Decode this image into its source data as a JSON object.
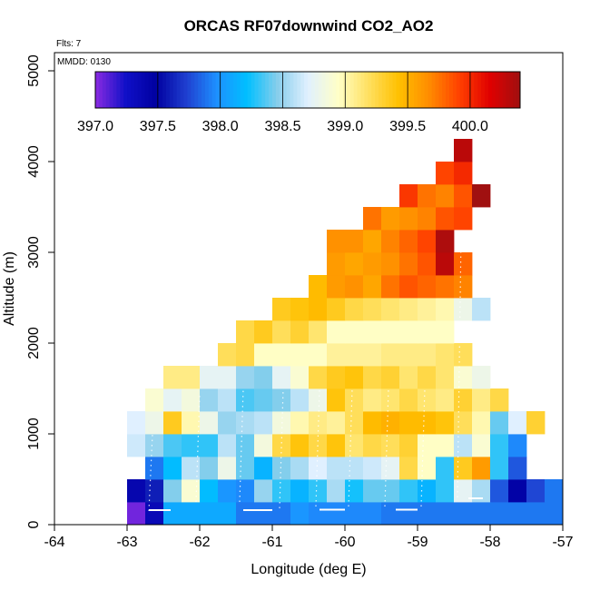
{
  "chart_data": {
    "type": "heatmap",
    "title": "ORCAS RF07downwind CO2_AO2",
    "annotations": [
      "Flts: 7",
      "MMDD: 0130"
    ],
    "xlabel": "Longitude (deg E)",
    "ylabel": "Altitude (m)",
    "xlim": [
      -64,
      -57
    ],
    "ylim": [
      0,
      5200
    ],
    "x_ticks": [
      -64,
      -63,
      -62,
      -61,
      -60,
      -59,
      -58,
      -57
    ],
    "y_ticks": [
      0,
      1000,
      2000,
      3000,
      4000,
      5000
    ],
    "x_tick_labels": [
      "-64",
      "-63",
      "-62",
      "-61",
      "-60",
      "-59",
      "-58",
      "-57"
    ],
    "y_tick_labels": [
      "0",
      "1000",
      "2000",
      "3000",
      "4000",
      "5000"
    ],
    "grid": false,
    "colorbar": {
      "min": 397.0,
      "max": 400.4,
      "ticks": [
        397.0,
        397.5,
        398.0,
        398.5,
        399.0,
        399.5,
        400.0
      ],
      "tick_labels": [
        "397.0",
        "397.5",
        "398.0",
        "398.5",
        "399.0",
        "399.5",
        "400.0"
      ],
      "position": "top inset",
      "colors": [
        "#8a2be2",
        "#1010c8",
        "#0000a0",
        "#1f3fd0",
        "#1e90ff",
        "#00bfff",
        "#87ceeb",
        "#e0f0ff",
        "#ffffc8",
        "#ffe060",
        "#ffc000",
        "#ff8c00",
        "#ff4000",
        "#e00000",
        "#a01010"
      ]
    },
    "cell_size": {
      "lon": 0.25,
      "alt": 250
    },
    "rows": [
      {
        "alt": 125,
        "lon0": -63.0,
        "values": [
          397.05,
          397.35,
          398.1,
          398.1,
          398.1,
          398.1,
          397.9,
          397.9,
          397.9,
          398.0,
          397.95,
          397.95,
          397.95,
          397.95,
          397.9,
          397.9,
          397.9,
          397.9,
          397.9,
          397.9,
          397.9,
          397.9,
          397.9,
          397.9
        ]
      },
      {
        "alt": 375,
        "lon0": -63.0,
        "values": [
          397.4,
          397.6,
          398.45,
          398.9,
          398.2,
          398.0,
          397.95,
          398.5,
          398.3,
          398.15,
          398.3,
          398.55,
          398.25,
          398.4,
          398.4,
          398.3,
          398.15,
          398.3,
          398.75,
          398.55,
          397.8,
          397.45,
          397.75,
          397.9
        ]
      },
      {
        "alt": 625,
        "lon0": -62.75,
        "values": [
          397.9,
          398.2,
          398.6,
          398.45,
          398.8,
          398.4,
          398.15,
          398.45,
          398.55,
          398.7,
          398.6,
          398.6,
          398.65,
          398.75,
          399.25,
          398.95,
          398.3,
          399.35,
          399.6,
          398.3,
          397.8
        ]
      },
      {
        "alt": 875,
        "lon0": -63.0,
        "values": [
          398.65,
          398.5,
          398.35,
          398.3,
          398.3,
          398.6,
          398.4,
          398.85,
          399.25,
          399.4,
          399.25,
          399.4,
          399.15,
          399.25,
          399.2,
          399.3,
          398.95,
          398.95,
          398.6,
          398.9,
          398.3,
          397.95
        ]
      },
      {
        "alt": 1125,
        "lon0": -63.0,
        "values": [
          398.7,
          398.8,
          399.35,
          399.0,
          398.8,
          398.5,
          398.55,
          398.6,
          398.85,
          399.0,
          399.1,
          399.05,
          399.2,
          399.45,
          399.5,
          399.45,
          399.45,
          399.4,
          399.2,
          399.0,
          398.4,
          398.7,
          399.3
        ]
      },
      {
        "alt": 1375,
        "lon0": -62.75,
        "values": [
          398.9,
          398.75,
          398.85,
          398.5,
          398.6,
          398.35,
          398.4,
          398.45,
          398.6,
          398.8,
          399.4,
          399.2,
          399.1,
          399.15,
          399.25,
          399.15,
          399.1,
          399.3,
          399.1,
          399.25
        ]
      },
      {
        "alt": 1625,
        "lon0": -62.5,
        "values": [
          399.1,
          399.1,
          398.75,
          398.75,
          398.5,
          398.45,
          398.75,
          398.9,
          399.25,
          399.35,
          399.4,
          399.25,
          399.3,
          399.15,
          399.25,
          399.15,
          398.9,
          398.8
        ]
      },
      {
        "alt": 1875,
        "lon0": -61.75,
        "values": [
          399.2,
          399.25,
          398.95,
          398.95,
          398.95,
          398.95,
          399.05,
          399.05,
          399.05,
          399.1,
          399.1,
          399.1,
          399.15,
          399.2
        ]
      },
      {
        "alt": 2125,
        "lon0": -61.5,
        "values": [
          399.25,
          399.35,
          399.2,
          399.3,
          399.15,
          398.95,
          398.95,
          398.95,
          398.95,
          398.95,
          398.95,
          398.95
        ]
      },
      {
        "alt": 2375,
        "lon0": -61.0,
        "values": [
          399.35,
          399.4,
          399.45,
          399.35,
          399.25,
          399.2,
          399.15,
          399.1,
          399.05,
          399.0,
          398.8,
          398.6
        ]
      },
      {
        "alt": 2625,
        "lon0": -60.5,
        "values": [
          399.45,
          399.6,
          399.65,
          399.55,
          399.75,
          399.85,
          399.8,
          399.75,
          399.7
        ]
      },
      {
        "alt": 2875,
        "lon0": -60.25,
        "values": [
          399.6,
          399.55,
          399.6,
          399.65,
          399.75,
          399.85,
          400.3,
          399.8
        ]
      },
      {
        "alt": 3125,
        "lon0": -60.25,
        "values": [
          399.65,
          399.65,
          399.55,
          399.7,
          399.8,
          399.9,
          400.35
        ]
      },
      {
        "alt": 3375,
        "lon0": -59.75,
        "values": [
          399.75,
          399.6,
          399.65,
          399.7,
          399.85,
          399.9
        ]
      },
      {
        "alt": 3625,
        "lon0": -59.25,
        "values": [
          399.95,
          399.75,
          399.7,
          399.85,
          400.4
        ]
      },
      {
        "alt": 3875,
        "lon0": -58.75,
        "values": [
          399.9,
          400.0
        ]
      },
      {
        "alt": 4125,
        "lon0": -58.5,
        "values": [
          400.3
        ]
      }
    ]
  }
}
